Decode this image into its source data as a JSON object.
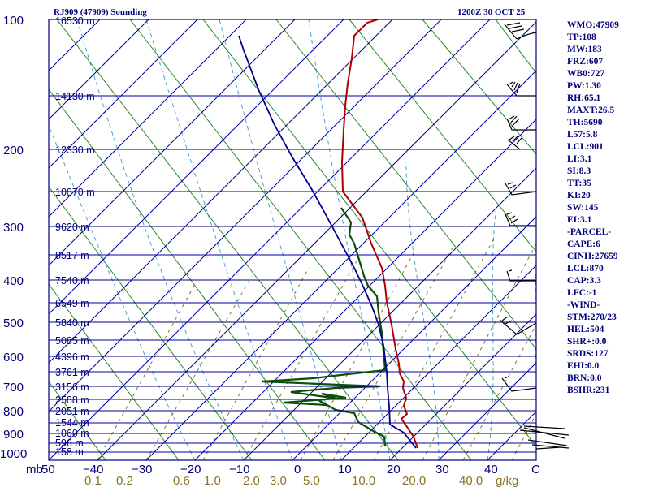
{
  "header": {
    "station": "RJ909 (47909) Sounding",
    "time": "1200Z 30 OCT 25"
  },
  "pressure_labels": [
    "100",
    "200",
    "300",
    "400",
    "500",
    "600",
    "700",
    "800",
    "900",
    "1000"
  ],
  "pressure_unit": "mb",
  "height_labels": [
    "16530 m",
    "14130 m",
    "12330 m",
    "10870 m",
    "9620 m",
    "8517 m",
    "7540 m",
    "6549 m",
    "5840 m",
    "5085 m",
    "4396 m",
    "3761 m",
    "3156 m",
    "2588 m",
    "2051 m",
    "1544 m",
    "1060 m",
    "596 m",
    "158 m"
  ],
  "temp_labels": [
    "−40",
    "−30",
    "−20",
    "−10",
    "0",
    "10",
    "20",
    "30",
    "40"
  ],
  "temp_first": "50",
  "temp_last": "C",
  "mixing_ratio_labels": [
    "0.1",
    "0.2",
    "0.6",
    "1.0",
    "2.0",
    "3.0",
    "5.0",
    "10.0",
    "20.0",
    "40.0"
  ],
  "mixing_ratio_unit": "g/kg",
  "indices": [
    "WMO:47909",
    "TP:108",
    "MW:183",
    "FRZ:607",
    "WB0:727",
    "PW:1.30",
    "RH:65.1",
    "MAXT:26.5",
    "TH:5690",
    "L57:5.8",
    "LCL:901",
    "LI:3.1",
    "SI:8.3",
    "TT:35",
    "KI:20",
    "SW:145",
    "EI:3.1",
    "-PARCEL-",
    "CAPE:6",
    "CINH:27659",
    "LCL:870",
    "CAP:3.3",
    "LFC:-1",
    "-WIND-",
    "STM:270/23",
    "HEL:504",
    "SHR+:0.0",
    "SRDS:127",
    "EHI:0.0",
    "BRN:0.0",
    "BSHR:231"
  ],
  "colors": {
    "frame": "#00007a",
    "isotherm": "#0000a0",
    "dry_adiabat": "#2a8a2a",
    "moist_adiabat": "#4aa0d0",
    "mixing_ratio": "#8a7420",
    "temperature": "#b00000",
    "dewpoint": "#0a4f0a",
    "parcel": "#00008c",
    "wind_barb": "#000000"
  }
}
